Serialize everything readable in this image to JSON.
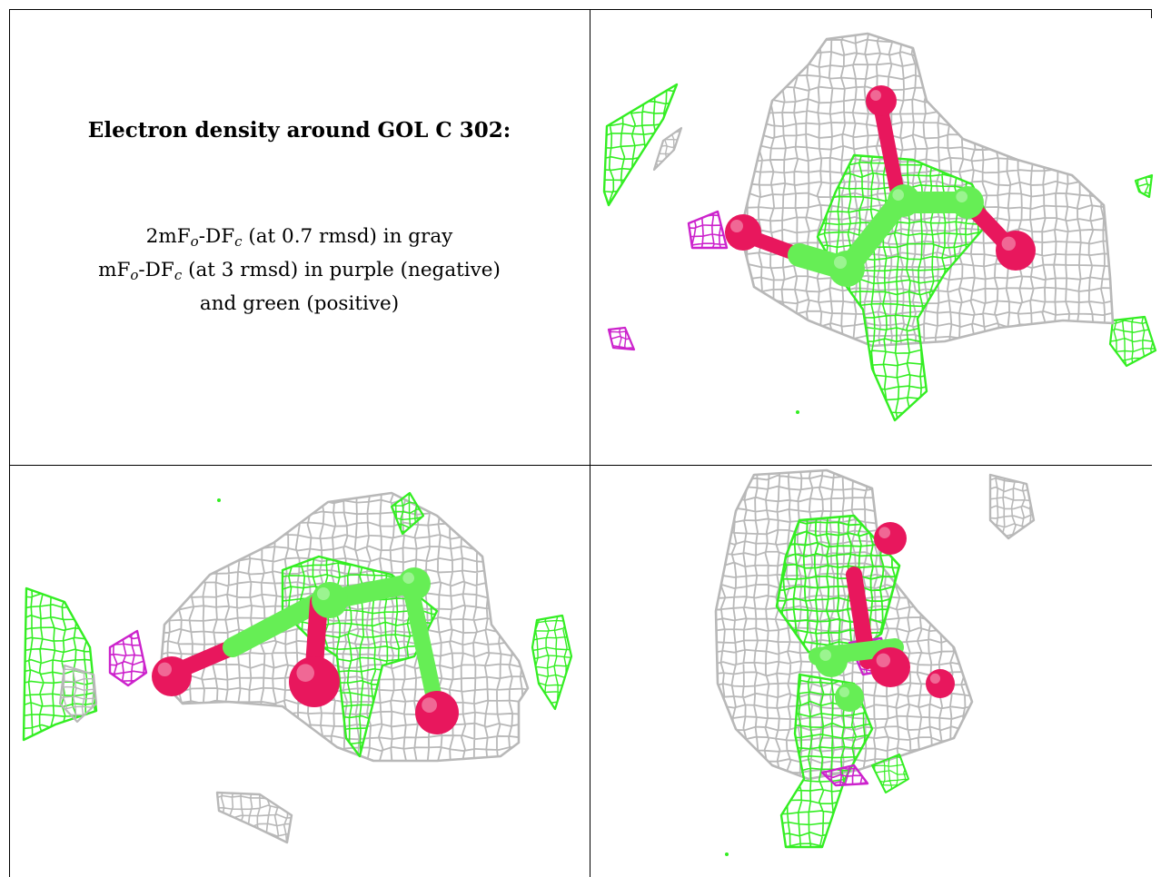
{
  "caption": {
    "title": "Electron density around GOL C 302:",
    "line1_pre": "2mF",
    "line1_sub1": "o",
    "line1_mid": "-DF",
    "line1_sub2": "c",
    "line1_post": " (at 0.7 rmsd) in gray",
    "line2_pre": "mF",
    "line2_sub1": "o",
    "line2_mid": "-DF",
    "line2_sub2": "c",
    "line2_post": " (at 3 rmsd) in purple (negative)",
    "line3": "and green (positive)"
  },
  "colors": {
    "mesh_2fofc": "#b8b8b8",
    "mesh_fofc_positive": "#33ee22",
    "mesh_fofc_negative": "#cc22cc",
    "oxygen_atom": "#e8175d",
    "carbon_atom": "#66ee55"
  },
  "panels": [
    {
      "name": "view-top-right"
    },
    {
      "name": "view-bottom-left"
    },
    {
      "name": "view-bottom-right"
    }
  ]
}
